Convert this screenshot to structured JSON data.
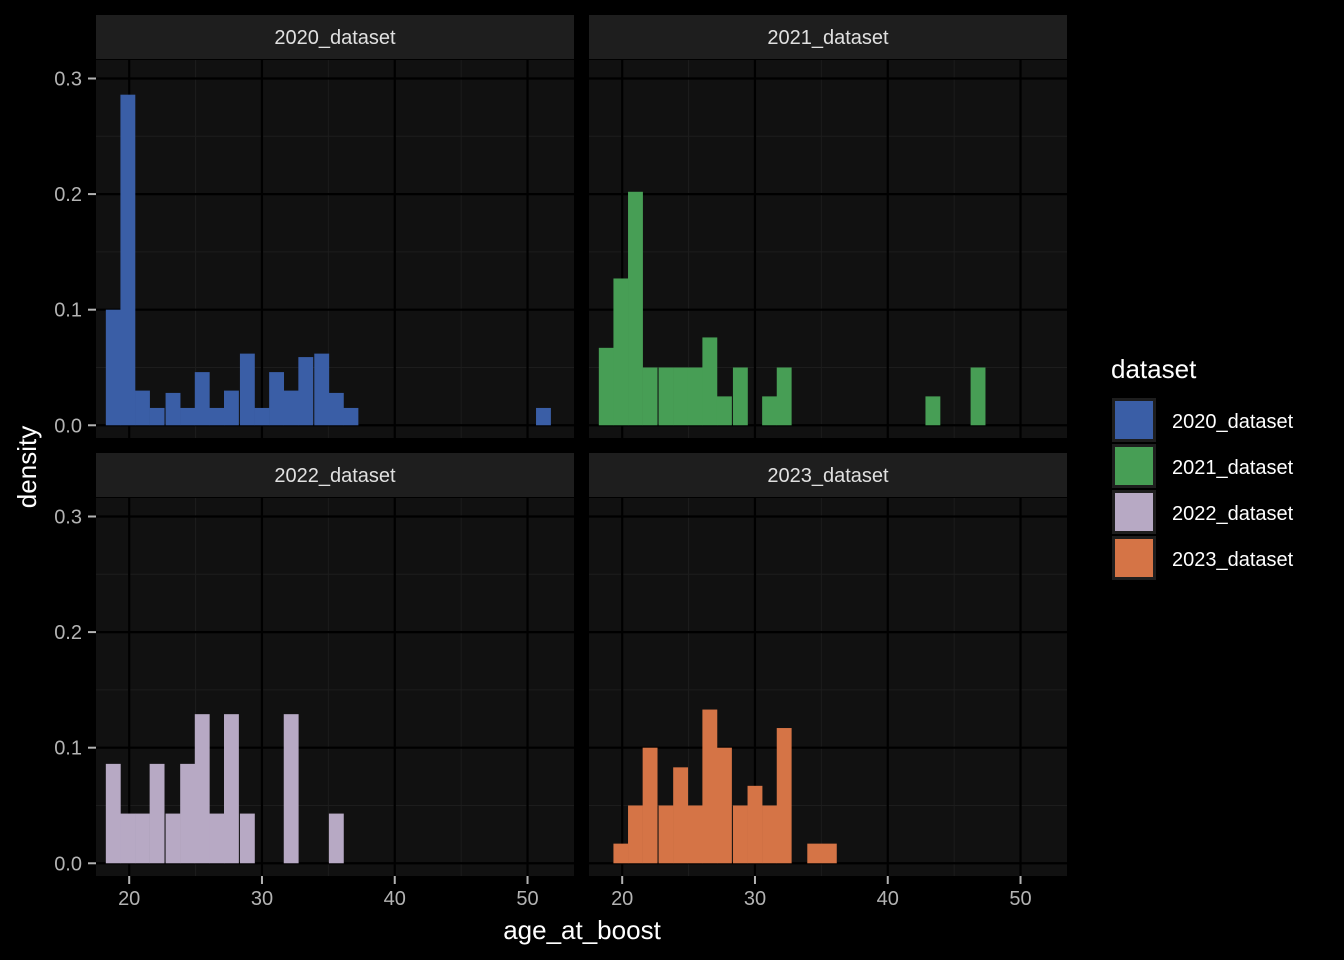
{
  "chart_data": {
    "type": "bar",
    "xlabel": "age_at_boost",
    "ylabel": "density",
    "xlim": [
      17.5,
      53.5
    ],
    "ylim": [
      -0.011,
      0.316
    ],
    "x_ticks": [
      20,
      30,
      40,
      50
    ],
    "y_ticks": [
      0.0,
      0.1,
      0.2,
      0.3
    ],
    "x_tick_labels": [
      "20",
      "30",
      "40",
      "50"
    ],
    "y_tick_labels": [
      "0.0",
      "0.1",
      "0.2",
      "0.3"
    ],
    "bin_width": 1.12,
    "grid": true,
    "legend": {
      "title": "dataset",
      "placement": "right",
      "entries": [
        {
          "label": "2020_dataset",
          "color": "#3a5ea6"
        },
        {
          "label": "2021_dataset",
          "color": "#479e55"
        },
        {
          "label": "2022_dataset",
          "color": "#b7a9c4"
        },
        {
          "label": "2023_dataset",
          "color": "#d57446"
        }
      ]
    },
    "panels": [
      {
        "name": "2020_dataset",
        "color": "#3a5ea6",
        "bins": [
          [
            18.8,
            0.1
          ],
          [
            19.9,
            0.286
          ],
          [
            21.0,
            0.03
          ],
          [
            22.1,
            0.015
          ],
          [
            23.3,
            0.028
          ],
          [
            24.4,
            0.015
          ],
          [
            25.5,
            0.046
          ],
          [
            26.6,
            0.015
          ],
          [
            27.7,
            0.03
          ],
          [
            28.9,
            0.062
          ],
          [
            30.0,
            0.015
          ],
          [
            31.1,
            0.046
          ],
          [
            32.2,
            0.03
          ],
          [
            33.3,
            0.059
          ],
          [
            34.5,
            0.062
          ],
          [
            35.6,
            0.028
          ],
          [
            36.7,
            0.015
          ],
          [
            51.2,
            0.015
          ]
        ]
      },
      {
        "name": "2021_dataset",
        "color": "#479e55",
        "bins": [
          [
            18.8,
            0.067
          ],
          [
            19.9,
            0.127
          ],
          [
            21.0,
            0.202
          ],
          [
            22.1,
            0.05
          ],
          [
            23.3,
            0.05
          ],
          [
            24.4,
            0.05
          ],
          [
            25.5,
            0.05
          ],
          [
            26.6,
            0.076
          ],
          [
            27.7,
            0.025
          ],
          [
            28.9,
            0.05
          ],
          [
            31.1,
            0.025
          ],
          [
            32.2,
            0.05
          ],
          [
            43.4,
            0.025
          ],
          [
            46.8,
            0.05
          ]
        ]
      },
      {
        "name": "2022_dataset",
        "color": "#b7a9c4",
        "bins": [
          [
            18.8,
            0.086
          ],
          [
            19.9,
            0.043
          ],
          [
            21.0,
            0.043
          ],
          [
            22.1,
            0.086
          ],
          [
            23.3,
            0.043
          ],
          [
            24.4,
            0.086
          ],
          [
            25.5,
            0.129
          ],
          [
            26.6,
            0.043
          ],
          [
            27.7,
            0.129
          ],
          [
            28.9,
            0.043
          ],
          [
            32.2,
            0.129
          ],
          [
            35.6,
            0.043
          ]
        ]
      },
      {
        "name": "2023_dataset",
        "color": "#d57446",
        "bins": [
          [
            19.9,
            0.017
          ],
          [
            21.0,
            0.05
          ],
          [
            22.1,
            0.1
          ],
          [
            23.3,
            0.05
          ],
          [
            24.4,
            0.083
          ],
          [
            25.5,
            0.05
          ],
          [
            26.6,
            0.133
          ],
          [
            27.7,
            0.1
          ],
          [
            28.9,
            0.05
          ],
          [
            30.0,
            0.067
          ],
          [
            31.1,
            0.05
          ],
          [
            32.2,
            0.117
          ],
          [
            34.5,
            0.017
          ],
          [
            35.6,
            0.017
          ]
        ]
      }
    ]
  }
}
